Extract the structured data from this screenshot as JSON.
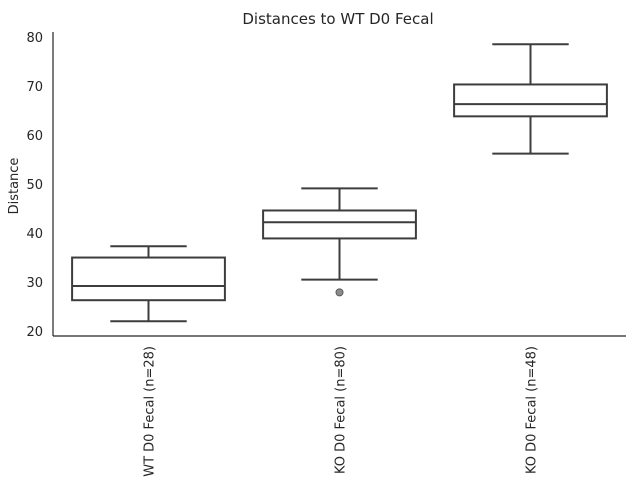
{
  "chart_data": {
    "type": "box",
    "title": "Distances to WT D0 Fecal",
    "xlabel": "",
    "ylabel": "Distance",
    "ylim": [
      19,
      81
    ],
    "yticks": [
      20,
      30,
      40,
      50,
      60,
      70,
      80
    ],
    "grid": false,
    "categories": [
      "WT D0 Fecal (n=28)",
      "KO D0 Fecal (n=80)",
      "KO D0 Fecal (n=48)"
    ],
    "boxes": [
      {
        "whisker_low": 22.0,
        "q1": 26.3,
        "median": 29.2,
        "q3": 35.0,
        "whisker_high": 37.3,
        "outliers": []
      },
      {
        "whisker_low": 30.5,
        "q1": 38.9,
        "median": 42.2,
        "q3": 44.6,
        "whisker_high": 49.1,
        "outliers": [
          27.9
        ]
      },
      {
        "whisker_low": 56.2,
        "q1": 63.8,
        "median": 66.3,
        "q3": 70.3,
        "whisker_high": 78.5,
        "outliers": []
      }
    ]
  }
}
